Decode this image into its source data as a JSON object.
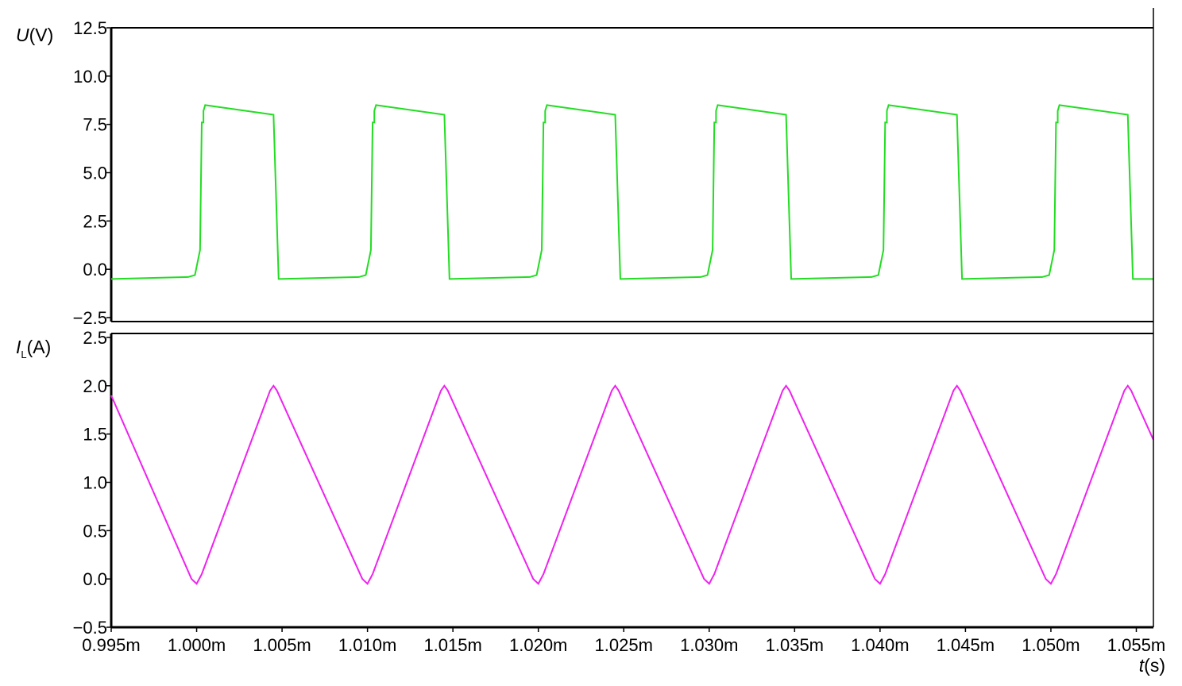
{
  "chart_data": {
    "type": "line",
    "x_label": "t(s)",
    "x_label_italic": "t",
    "x_label_unit": "(s)",
    "x_ticks": [
      "0.995m",
      "1.000m",
      "1.005m",
      "1.010m",
      "1.015m",
      "1.020m",
      "1.025m",
      "1.030m",
      "1.035m",
      "1.040m",
      "1.045m",
      "1.050m",
      "1.055m"
    ],
    "x_range_ms": [
      0.995,
      1.056
    ],
    "panels": [
      {
        "name": "voltage",
        "ylabel_italic": "U",
        "ylabel_unit": "(V)",
        "ylabel_subscript": "",
        "color": "#22dd22",
        "ylim": [
          -2.5,
          12.5
        ],
        "y_ticks": [
          "12.5",
          "10.0",
          "7.5",
          "5.0",
          "2.5",
          "0.0",
          "−2.5"
        ],
        "y_tick_values": [
          12.5,
          10,
          7.5,
          5,
          2.5,
          0,
          -2.5
        ],
        "x_ms": [
          0.995,
          0.9995,
          0.9999,
          1.0002,
          1.0003,
          1.0004,
          1.0004,
          1.0005,
          1.0045,
          1.0048,
          1.0095,
          1.0099,
          1.0102,
          1.0103,
          1.0104,
          1.0104,
          1.0105,
          1.0145,
          1.0148,
          1.0195,
          1.0199,
          1.0202,
          1.0203,
          1.0204,
          1.0204,
          1.0205,
          1.0245,
          1.0248,
          1.0295,
          1.0299,
          1.0302,
          1.0303,
          1.0304,
          1.0304,
          1.0305,
          1.0345,
          1.0348,
          1.0395,
          1.0399,
          1.0402,
          1.0403,
          1.0404,
          1.0404,
          1.0405,
          1.0445,
          1.0448,
          1.0495,
          1.0499,
          1.0502,
          1.0503,
          1.0504,
          1.0504,
          1.0505,
          1.0545,
          1.0548,
          1.056
        ],
        "y": [
          -0.5,
          -0.4,
          -0.3,
          1.0,
          7.6,
          7.6,
          8.2,
          8.5,
          8.0,
          -0.5,
          -0.4,
          -0.3,
          1.0,
          7.6,
          7.6,
          8.2,
          8.5,
          8.0,
          -0.5,
          -0.4,
          -0.3,
          1.0,
          7.6,
          7.6,
          8.2,
          8.5,
          8.0,
          -0.5,
          -0.4,
          -0.3,
          1.0,
          7.6,
          7.6,
          8.2,
          8.5,
          8.0,
          -0.5,
          -0.4,
          -0.3,
          1.0,
          7.6,
          7.6,
          8.2,
          8.5,
          8.0,
          -0.5,
          -0.4,
          -0.3,
          1.0,
          7.6,
          7.6,
          8.2,
          8.5,
          8.0,
          -0.5,
          -0.5
        ]
      },
      {
        "name": "inductor-current",
        "ylabel_italic": "I",
        "ylabel_unit": "(A)",
        "ylabel_subscript": "L",
        "color": "#ee22ee",
        "ylim": [
          -0.5,
          2.5
        ],
        "y_ticks": [
          "2.5",
          "2.0",
          "1.5",
          "1.0",
          "0.5",
          "0.0",
          "−0.5"
        ],
        "y_tick_values": [
          2.5,
          2.0,
          1.5,
          1.0,
          0.5,
          0.0,
          -0.5
        ],
        "x_ms": [
          0.995,
          0.9997,
          1.0,
          1.0003,
          1.0043,
          1.0045,
          1.0047,
          1.0097,
          1.01,
          1.0103,
          1.0143,
          1.0145,
          1.0147,
          1.0197,
          1.02,
          1.0203,
          1.0243,
          1.0245,
          1.0247,
          1.0297,
          1.03,
          1.0303,
          1.0343,
          1.0345,
          1.0347,
          1.0397,
          1.04,
          1.0403,
          1.0443,
          1.0445,
          1.0447,
          1.0497,
          1.05,
          1.0503,
          1.0543,
          1.0545,
          1.0547,
          1.056
        ],
        "y": [
          1.9,
          0.0,
          -0.05,
          0.05,
          1.95,
          2.0,
          1.95,
          0.0,
          -0.05,
          0.05,
          1.95,
          2.0,
          1.95,
          0.0,
          -0.05,
          0.05,
          1.95,
          2.0,
          1.95,
          0.0,
          -0.05,
          0.05,
          1.95,
          2.0,
          1.95,
          0.0,
          -0.05,
          0.05,
          1.95,
          2.0,
          1.95,
          0.0,
          -0.05,
          0.05,
          1.95,
          2.0,
          1.95,
          1.44
        ]
      }
    ]
  }
}
